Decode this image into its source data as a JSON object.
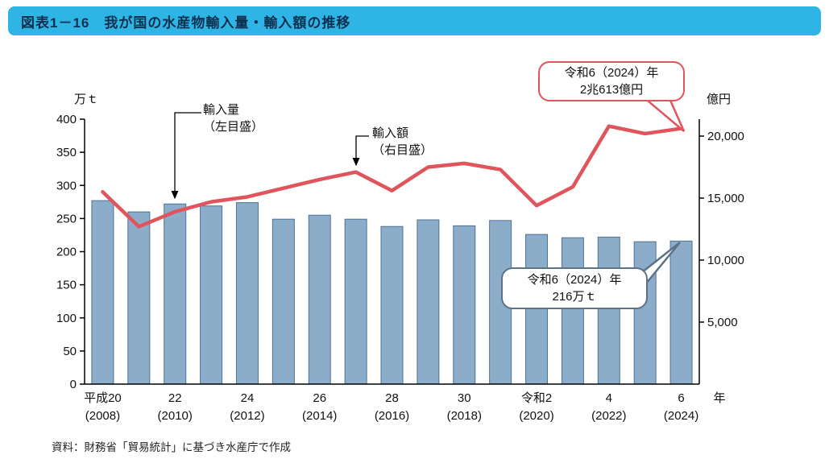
{
  "header": {
    "title": "図表1－16　我が国の水産物輸入量・輸入額の推移"
  },
  "source": "資料：財務省「貿易統計」に基づき水産庁で作成",
  "chart_data": {
    "type": "bar+line",
    "title": "我が国の水産物輸入量・輸入額の推移",
    "categories": [
      2008,
      2009,
      2010,
      2011,
      2012,
      2013,
      2014,
      2015,
      2016,
      2017,
      2018,
      2019,
      2020,
      2021,
      2022,
      2023,
      2024
    ],
    "series": [
      {
        "name": "輸入量（左目盛）",
        "type": "bar",
        "axis": "left",
        "unit": "万t",
        "values": [
          277,
          260,
          272,
          269,
          274,
          249,
          255,
          249,
          238,
          248,
          239,
          247,
          226,
          221,
          222,
          215,
          216
        ]
      },
      {
        "name": "輸入額（右目盛）",
        "type": "line",
        "axis": "right",
        "unit": "億円",
        "values": [
          15500,
          12700,
          13900,
          14700,
          15100,
          15800,
          16500,
          17100,
          15600,
          17500,
          17800,
          17300,
          14400,
          15900,
          20800,
          20200,
          20613
        ]
      }
    ],
    "left_axis": {
      "label": "万ｔ",
      "max": 400,
      "ticks": [
        0,
        50,
        100,
        150,
        200,
        250,
        300,
        350,
        400
      ]
    },
    "right_axis": {
      "label": "億円",
      "ticks": [
        5000,
        10000,
        15000,
        20000
      ],
      "tick_labels": [
        "5,000",
        "10,000",
        "15,000",
        "20,000"
      ]
    },
    "x_ticks": [
      {
        "i": 0,
        "line1": "平成20",
        "line2": "(2008)"
      },
      {
        "i": 2,
        "line1": "22",
        "line2": "(2010)"
      },
      {
        "i": 4,
        "line1": "24",
        "line2": "(2012)"
      },
      {
        "i": 6,
        "line1": "26",
        "line2": "(2014)"
      },
      {
        "i": 8,
        "line1": "28",
        "line2": "(2016)"
      },
      {
        "i": 10,
        "line1": "30",
        "line2": "(2018)"
      },
      {
        "i": 12,
        "line1": "令和2",
        "line2": "(2020)"
      },
      {
        "i": 14,
        "line1": "4",
        "line2": "(2022)"
      },
      {
        "i": 16,
        "line1": "6",
        "line2": "(2024)"
      }
    ],
    "x_axis_suffix": "年",
    "annotations": {
      "volume_label": {
        "line1": "輸入量",
        "line2": "（左目盛）"
      },
      "value_label": {
        "line1": "輸入額",
        "line2": "（右目盛）"
      },
      "value_callout": {
        "line1": "令和6（2024）年",
        "line2": "2兆613億円"
      },
      "volume_callout": {
        "line1": "令和6（2024）年",
        "line2": "216万ｔ"
      }
    },
    "grid": false,
    "legend_position": "in-plot annotations",
    "colors": {
      "bar": "#8cadc9",
      "bar_border": "#4f7293",
      "line": "#e0545c",
      "bubble_border": "#5c7286",
      "header_bg": "#2eb5e5",
      "header_text": "#0c3050",
      "axis": "#000000"
    }
  }
}
